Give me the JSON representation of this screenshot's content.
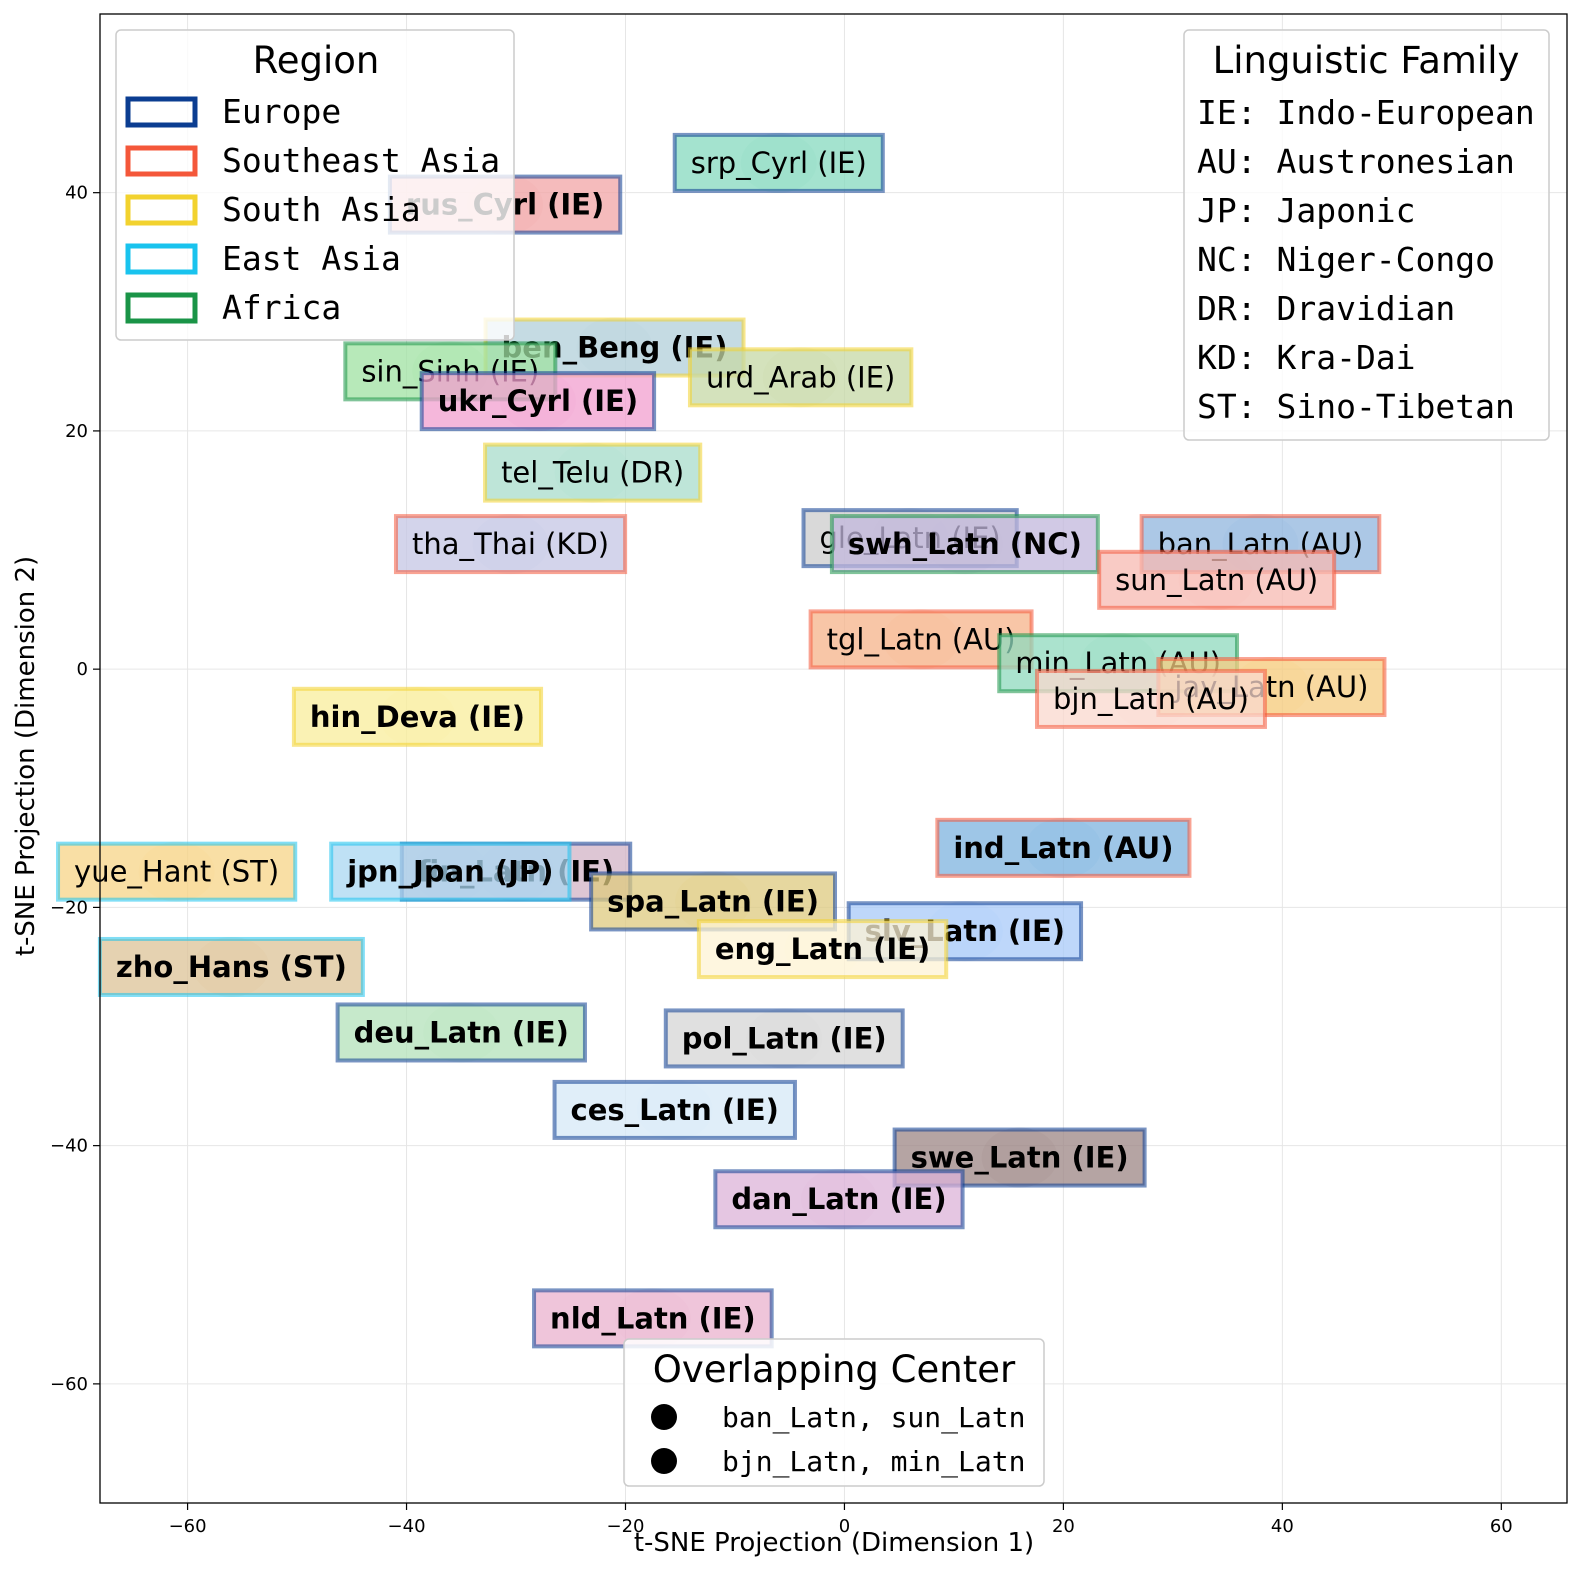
{
  "chart_data": {
    "type": "scatter",
    "xlabel": "t-SNE Projection (Dimension 1)",
    "ylabel": "t-SNE Projection (Dimension 2)",
    "xlim": [
      -68,
      66
    ],
    "ylim": [
      -70,
      55
    ],
    "xticks": [
      -60,
      -40,
      -20,
      0,
      20,
      40,
      60
    ],
    "yticks": [
      -60,
      -40,
      -20,
      0,
      20,
      40
    ],
    "grid": true,
    "region_colors": {
      "Europe": "#0b3d91",
      "Southeast Asia": "#f4573a",
      "South Asia": "#f2d22e",
      "East Asia": "#19c3ee",
      "Africa": "#1a9447"
    },
    "labels": [
      {
        "text": "rus_Cyrl (IE)",
        "x": -31,
        "y": 39,
        "region": "Europe",
        "fill": "#f1a4a6",
        "bold": true
      },
      {
        "text": "srp_Cyrl (IE)",
        "x": -6,
        "y": 42.5,
        "region": "Europe",
        "fill": "#86d9bf",
        "bold": false
      },
      {
        "text": "ben_Beng (IE)",
        "x": -21,
        "y": 27,
        "region": "South Asia",
        "fill": "#b1cfd9",
        "bold": true
      },
      {
        "text": "sin_Sinh (IE)",
        "x": -36,
        "y": 25,
        "region": "Africa",
        "fill": "#9fe2a1",
        "bold": false
      },
      {
        "text": "urd_Arab (IE)",
        "x": -4,
        "y": 24.5,
        "region": "South Asia",
        "fill": "#c6d8a6",
        "bold": false
      },
      {
        "text": "ukr_Cyrl (IE)",
        "x": -28,
        "y": 22.5,
        "region": "Europe",
        "fill": "#f19fcf",
        "bold": true
      },
      {
        "text": "tel_Telu (DR)",
        "x": -23,
        "y": 16.5,
        "region": "South Asia",
        "fill": "#a8dccb",
        "bold": false
      },
      {
        "text": "tha_Thai (KD)",
        "x": -30.5,
        "y": 10.5,
        "region": "Southeast Asia",
        "fill": "#c4c5e4",
        "bold": false
      },
      {
        "text": "gle_Latn (IE)",
        "x": 6,
        "y": 11,
        "region": "Europe",
        "fill": "#cccccc",
        "bold": false
      },
      {
        "text": "swh_Latn (NC)",
        "x": 11,
        "y": 10.5,
        "region": "Africa",
        "fill": "#c1b7dc",
        "bold": true
      },
      {
        "text": "ban_Latn (AU)",
        "x": 38,
        "y": 10.5,
        "region": "Southeast Asia",
        "fill": "#90b6dd",
        "bold": false
      },
      {
        "text": "sun_Latn (AU)",
        "x": 34,
        "y": 7.5,
        "region": "Southeast Asia",
        "fill": "#f7b9b1",
        "bold": false
      },
      {
        "text": "tgl_Latn (AU)",
        "x": 7,
        "y": 2.5,
        "region": "Southeast Asia",
        "fill": "#f5b389",
        "bold": false
      },
      {
        "text": "min_Latn (AU)",
        "x": 25,
        "y": 0.5,
        "region": "Africa",
        "fill": "#8fd9bd",
        "bold": false
      },
      {
        "text": "jav_Latn (AU)",
        "x": 39,
        "y": -1.5,
        "region": "Southeast Asia",
        "fill": "#f5cc80",
        "bold": false
      },
      {
        "text": "bjn_Latn (AU)",
        "x": 28,
        "y": -2.5,
        "region": "Southeast Asia",
        "fill": "#fad8ce",
        "bold": false
      },
      {
        "text": "hin_Deva (IE)",
        "x": -39,
        "y": -4,
        "region": "South Asia",
        "fill": "#f8ee9b",
        "bold": true
      },
      {
        "text": "ind_Latn (AU)",
        "x": 20,
        "y": -15,
        "region": "Southeast Asia",
        "fill": "#7db3df",
        "bold": true
      },
      {
        "text": "yue_Hant (ST)",
        "x": -61,
        "y": -17,
        "region": "East Asia",
        "fill": "#f7d487",
        "bold": false
      },
      {
        "text": "fin_Latn (IE)",
        "x": -30,
        "y": -17,
        "region": "Europe",
        "fill": "#d2b3c6",
        "bold": true
      },
      {
        "text": "jpn_Jpan (JP)",
        "x": -36,
        "y": -17,
        "region": "East Asia",
        "fill": "#a9d7f2",
        "bold": true
      },
      {
        "text": "spa_Latn (IE)",
        "x": -12,
        "y": -19.5,
        "region": "Europe",
        "fill": "#ddc97f",
        "bold": true
      },
      {
        "text": "slv_Latn (IE)",
        "x": 11,
        "y": -22,
        "region": "Europe",
        "fill": "#a8c9f8",
        "bold": true
      },
      {
        "text": "eng_Latn (IE)",
        "x": -2,
        "y": -23.5,
        "region": "South Asia",
        "fill": "#fdf3d4",
        "bold": true
      },
      {
        "text": "zho_Hans (ST)",
        "x": -56,
        "y": -25,
        "region": "East Asia",
        "fill": "#dcc397",
        "bold": true
      },
      {
        "text": "deu_Latn (IE)",
        "x": -35,
        "y": -30.5,
        "region": "Europe",
        "fill": "#b3e2b9",
        "bold": true
      },
      {
        "text": "pol_Latn (IE)",
        "x": -5.5,
        "y": -31,
        "region": "Europe",
        "fill": "#d5d5d5",
        "bold": true
      },
      {
        "text": "ces_Latn (IE)",
        "x": -15.5,
        "y": -37,
        "region": "Europe",
        "fill": "#d6e8f7",
        "bold": true
      },
      {
        "text": "swe_Latn (IE)",
        "x": 16,
        "y": -41,
        "region": "Europe",
        "fill": "#9c8684",
        "bold": true
      },
      {
        "text": "dan_Latn (IE)",
        "x": -0.5,
        "y": -44.5,
        "region": "Europe",
        "fill": "#dcb3d8",
        "bold": true
      },
      {
        "text": "nld_Latn (IE)",
        "x": -17.5,
        "y": -54.5,
        "region": "Europe",
        "fill": "#e9b2cd",
        "bold": true
      }
    ],
    "legends": {
      "region": {
        "title": "Region",
        "placement": "top-left",
        "items": [
          "Europe",
          "Southeast Asia",
          "South Asia",
          "East Asia",
          "Africa"
        ]
      },
      "family": {
        "title": "Linguistic Family",
        "placement": "top-right",
        "items": [
          "IE: Indo-European",
          "AU: Austronesian",
          "JP: Japonic",
          "NC: Niger-Congo",
          "DR: Dravidian",
          "KD: Kra-Dai",
          "ST: Sino-Tibetan"
        ]
      },
      "overlap": {
        "title": "Overlapping Center",
        "placement": "bottom-center",
        "items": [
          "ban_Latn, sun_Latn",
          "bjn_Latn, min_Latn"
        ]
      }
    }
  }
}
